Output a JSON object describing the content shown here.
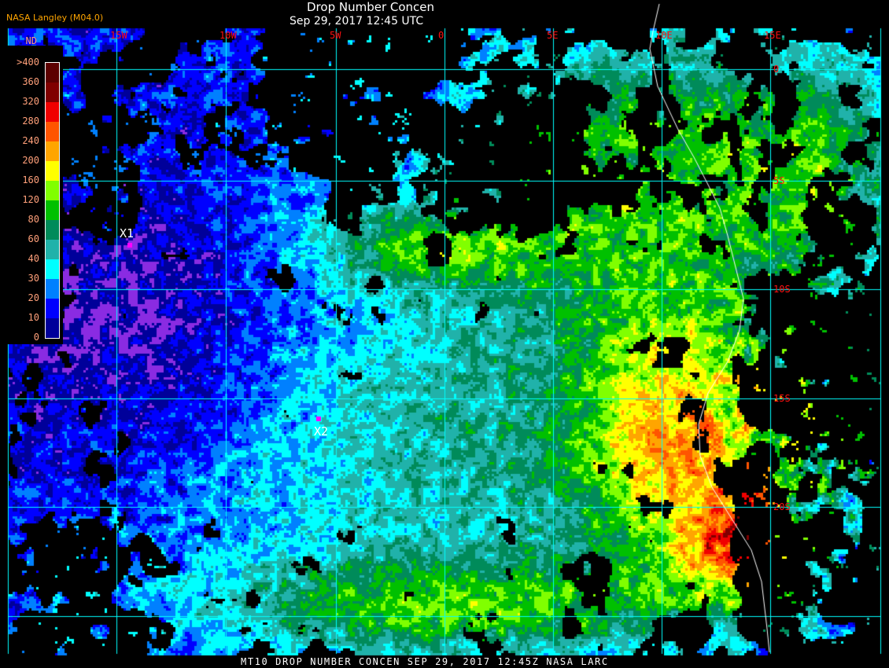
{
  "header": {
    "title": "Drop Number Concen",
    "datetime": "Sep 29, 2017 12:45 UTC",
    "credit": "NASA Langley (M04.0)"
  },
  "longitude_labels": [
    "15W",
    "10W",
    "5W",
    "0",
    "5E",
    "10E",
    "15E"
  ],
  "latitude_labels": [
    "0",
    "5S",
    "10S",
    "15S",
    "20S"
  ],
  "legend": {
    "unit": "ND",
    "labels": [
      ">400",
      "360",
      "320",
      "280",
      "240",
      "200",
      "160",
      "120",
      "80",
      "60",
      "40",
      "30",
      "20",
      "10",
      "0"
    ],
    "colors": [
      "#5c0000",
      "#800000",
      "#f00000",
      "#ff5500",
      "#ffa500",
      "#ffff00",
      "#80ff00",
      "#00c000",
      "#008b5a",
      "#20b2aa",
      "#00ffff",
      "#0080ff",
      "#0000ff",
      "#00009a",
      "#8a2be2"
    ]
  },
  "markers": [
    {
      "label": "X1",
      "color": "#ff00ff"
    },
    {
      "label": "X2",
      "color": "#ff00ff"
    }
  ],
  "grid_color": "#00ffff",
  "coastline_color": "#ffffff",
  "footer": "MT10  DROP NUMBER CONCEN   SEP 29, 2017 12:45Z   NASA LARC"
}
